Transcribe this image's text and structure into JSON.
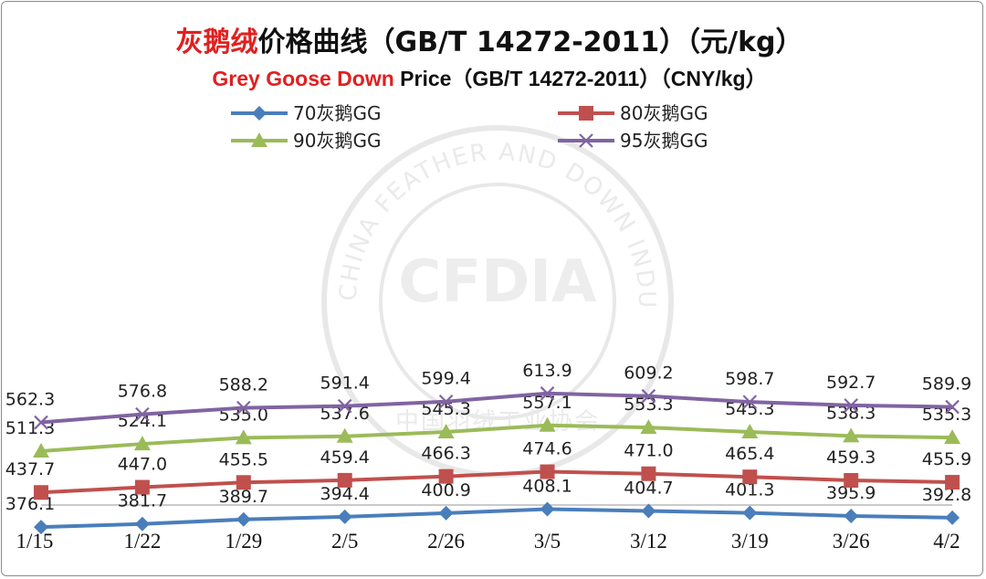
{
  "chart_data": {
    "type": "line",
    "title": {
      "cn_highlight": "灰鹅绒",
      "cn_rest": "价格曲线（GB/T 14272-2011）（元/kg）",
      "en_highlight": "Grey Goose Down",
      "en_rest": " Price（GB/T 14272-2011）（CNY/kg）"
    },
    "categories": [
      "1/15",
      "1/22",
      "1/29",
      "2/5",
      "2/26",
      "3/5",
      "3/12",
      "3/19",
      "3/26",
      "4/2"
    ],
    "ylim": [
      300,
      650
    ],
    "grid": false,
    "legend_position": "top",
    "series": [
      {
        "name": "70灰鹅GG",
        "color": "#4a7ebb",
        "marker": "diamond",
        "values": [
          376.1,
          381.7,
          389.7,
          394.4,
          400.9,
          408.1,
          404.7,
          401.3,
          395.9,
          392.8
        ],
        "labels": [
          "376.1",
          "381.7",
          "389.7",
          "394.4",
          "400.9",
          "408.1",
          "404.7",
          "401.3",
          "395.9",
          "392.8"
        ]
      },
      {
        "name": "80灰鹅GG",
        "color": "#c0504d",
        "marker": "square",
        "values": [
          437.7,
          447.0,
          455.5,
          459.4,
          466.3,
          474.6,
          471.0,
          465.4,
          459.3,
          455.9
        ],
        "labels": [
          "437.7",
          "447.0",
          "455.5",
          "459.4",
          "466.3",
          "474.6",
          "471.0",
          "465.4",
          "459.3",
          "455.9"
        ]
      },
      {
        "name": "90灰鹅GG",
        "color": "#9bbb59",
        "marker": "triangle",
        "values": [
          511.3,
          524.1,
          535.0,
          537.6,
          545.3,
          557.1,
          553.3,
          545.3,
          538.3,
          535.3
        ],
        "labels": [
          "511.3",
          "524.1",
          "535.0",
          "537.6",
          "545.3",
          "557.1",
          "553.3",
          "545.3",
          "538.3",
          "535.3"
        ]
      },
      {
        "name": "95灰鹅GG",
        "color": "#8064a2",
        "marker": "x",
        "values": [
          562.3,
          576.8,
          588.2,
          591.4,
          599.4,
          613.9,
          609.2,
          598.7,
          592.7,
          589.9
        ],
        "labels": [
          "562.3",
          "576.8",
          "588.2",
          "591.4",
          "599.4",
          "613.9",
          "609.2",
          "598.7",
          "592.7",
          "589.9"
        ]
      }
    ]
  },
  "watermark": {
    "ring_text": "CHINA FEATHER AND DOWN INDUSTRIAL ASSOCIATION",
    "cn_text": "中国羽绒工业协会",
    "logo_text": "CFDIA"
  }
}
